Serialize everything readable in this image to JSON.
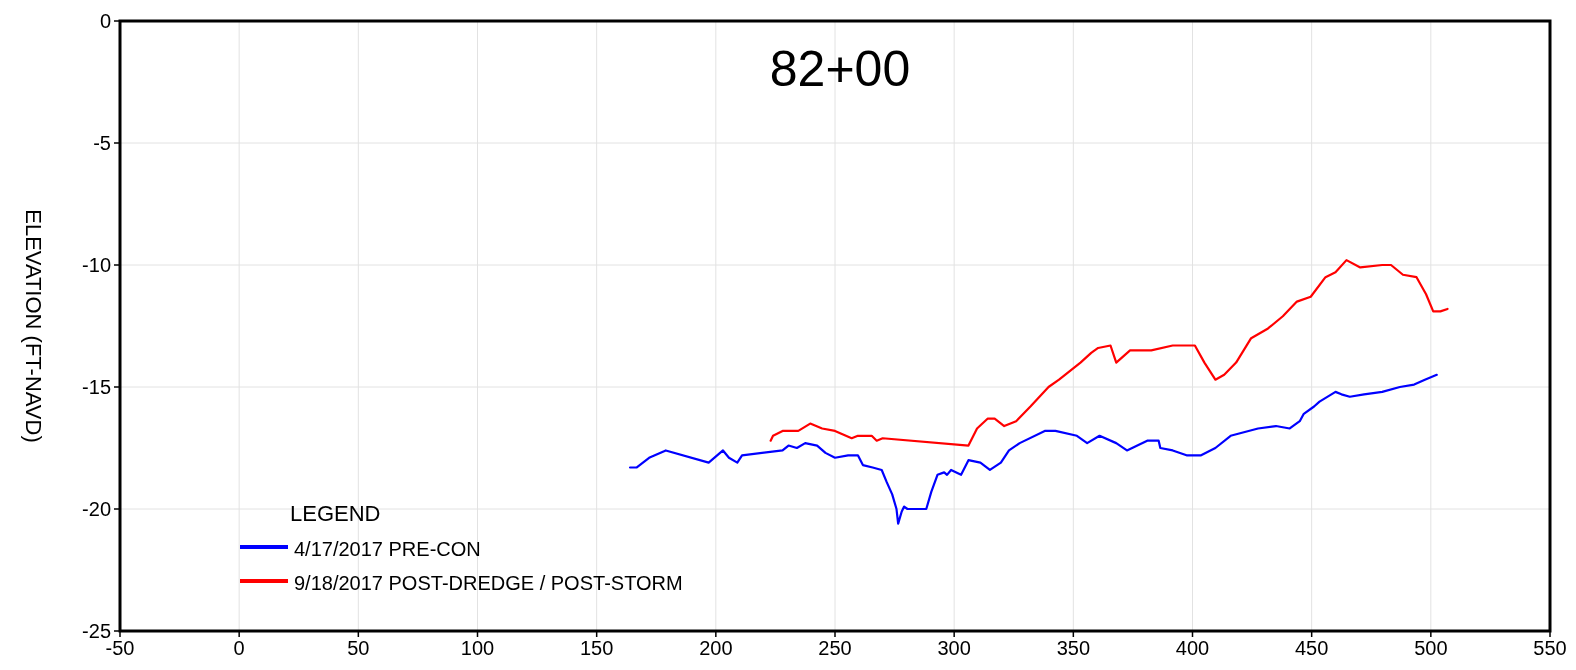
{
  "chart_data": {
    "type": "line",
    "title": "82+00",
    "ylabel": "ELEVATION (FT-NAVD)",
    "legend_title": "LEGEND",
    "legend": "bottom left",
    "grid": true,
    "marker": "none",
    "line_style": "solid",
    "xlim": [
      -50,
      550
    ],
    "xticks": [
      -50,
      0,
      50,
      100,
      150,
      200,
      250,
      300,
      350,
      400,
      450,
      500,
      550
    ],
    "ylim": [
      -25,
      0
    ],
    "yticks": [
      -25,
      -20,
      -15,
      -10,
      -5,
      0
    ],
    "series": [
      {
        "name": "4/17/2017 PRE-CON",
        "color": "#0000ff",
        "x": [
          164,
          166.7,
          172,
          179,
          197,
          203,
          205.5,
          209,
          211,
          228,
          230.5,
          234,
          237.5,
          242.5,
          246,
          250,
          255.5,
          259.6,
          261.7,
          265.8,
          269.6,
          271.7,
          274,
          275.8,
          276.5,
          278,
          279,
          280.4,
          288.3,
          290.4,
          293,
          295.8,
          297,
          298.7,
          302.9,
          306,
          311,
          315,
          319.6,
          323,
          327.5,
          338,
          342.5,
          351.5,
          355.8,
          361,
          368,
          372.5,
          381,
          385.8,
          386.5,
          391.7,
          397.5,
          403.6,
          409.6,
          416,
          427.5,
          435,
          440.8,
          445,
          446.7,
          451,
          453.3,
          460,
          462.5,
          466,
          472,
          479.6,
          487,
          493,
          497.5,
          502.5
        ],
        "values": [
          -18.3,
          -18.3,
          -17.9,
          -17.6,
          -18.1,
          -17.6,
          -17.9,
          -18.1,
          -17.8,
          -17.6,
          -17.4,
          -17.5,
          -17.3,
          -17.4,
          -17.7,
          -17.9,
          -17.8,
          -17.8,
          -18.2,
          -18.3,
          -18.4,
          -18.9,
          -19.4,
          -20,
          -20.6,
          -20.1,
          -19.9,
          -20,
          -20,
          -19.3,
          -18.6,
          -18.5,
          -18.6,
          -18.4,
          -18.6,
          -18,
          -18.1,
          -18.4,
          -18.1,
          -17.6,
          -17.3,
          -16.8,
          -16.8,
          -17,
          -17.3,
          -17,
          -17.3,
          -17.6,
          -17.2,
          -17.2,
          -17.5,
          -17.6,
          -17.8,
          -17.8,
          -17.5,
          -17,
          -16.7,
          -16.6,
          -16.7,
          -16.4,
          -16.1,
          -15.8,
          -15.6,
          -15.2,
          -15.3,
          -15.4,
          -15.3,
          -15.2,
          -15,
          -14.9,
          -14.7,
          -14.5
        ]
      },
      {
        "name": "9/18/2017 POST-DREDGE / POST-STORM",
        "color": "#ff0000",
        "x": [
          223,
          224,
          228,
          234.6,
          239.6,
          244.6,
          250,
          257,
          259.6,
          265.4,
          267.5,
          270,
          306,
          309.6,
          314,
          317,
          321,
          326,
          332,
          339.6,
          344,
          353,
          357.5,
          360.4,
          365.6,
          368,
          373.8,
          382.7,
          391.7,
          397.5,
          401,
          405,
          409.6,
          413.3,
          418.3,
          424.6,
          431.7,
          437.9,
          443.8,
          449.6,
          455.8,
          460,
          464.6,
          470.4,
          479.6,
          483.3,
          488.3,
          494,
          498,
          501,
          504,
          507
        ],
        "values": [
          -17.2,
          -17,
          -16.8,
          -16.8,
          -16.5,
          -16.7,
          -16.8,
          -17.1,
          -17,
          -17,
          -17.2,
          -17.1,
          -17.4,
          -16.7,
          -16.3,
          -16.3,
          -16.6,
          -16.4,
          -15.8,
          -15,
          -14.7,
          -14,
          -13.6,
          -13.4,
          -13.3,
          -14,
          -13.5,
          -13.5,
          -13.3,
          -13.3,
          -13.3,
          -14,
          -14.7,
          -14.5,
          -14,
          -13,
          -12.6,
          -12.1,
          -11.5,
          -11.3,
          -10.5,
          -10.3,
          -9.8,
          -10.1,
          -10,
          -10,
          -10.4,
          -10.5,
          -11.2,
          -11.9,
          -11.9,
          -11.8
        ]
      }
    ]
  }
}
